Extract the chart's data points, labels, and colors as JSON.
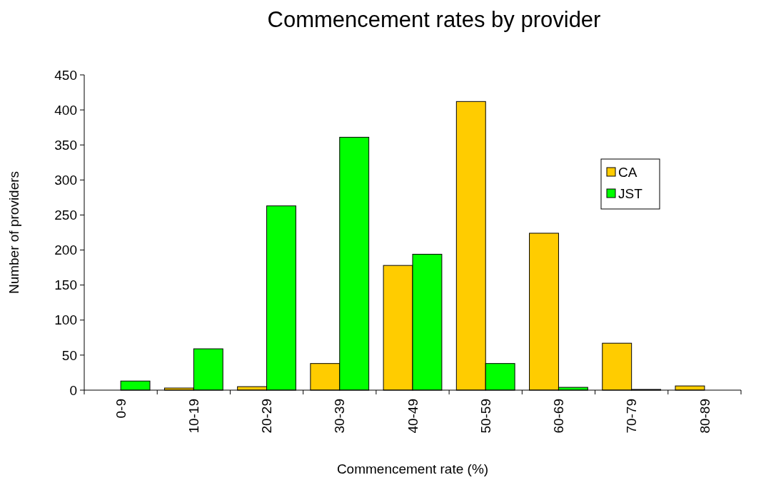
{
  "chart_data": {
    "type": "bar",
    "title": "Commencement rates by provider",
    "xlabel": "Commencement rate (%)",
    "ylabel": "Number of providers",
    "categories": [
      "0-9",
      "10-19",
      "20-29",
      "30-39",
      "40-49",
      "50-59",
      "60-69",
      "70-79",
      "80-89"
    ],
    "series": [
      {
        "name": "CA",
        "color": "#ffcc00",
        "values": [
          0,
          3,
          5,
          38,
          178,
          412,
          224,
          67,
          6
        ]
      },
      {
        "name": "JST",
        "color": "#00ff00",
        "values": [
          13,
          59,
          263,
          361,
          194,
          38,
          4,
          1,
          0
        ]
      }
    ],
    "ylim": [
      0,
      450
    ],
    "yticks": [
      0,
      50,
      100,
      150,
      200,
      250,
      300,
      350,
      400,
      450
    ],
    "grid": false,
    "legend": "right"
  }
}
